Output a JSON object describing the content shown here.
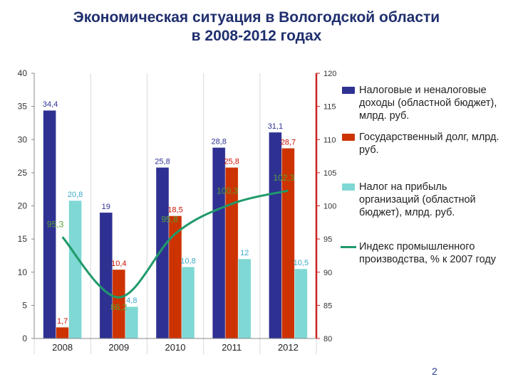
{
  "title": {
    "line1": "Экономическая ситуация в Вологодской области",
    "line2": "в 2008-2012 годах"
  },
  "page_number": "2",
  "chart_data": {
    "type": "bar",
    "categories": [
      "2008",
      "2009",
      "2010",
      "2011",
      "2012"
    ],
    "series": [
      {
        "name": "Налоговые и неналоговые доходы (областной бюджет), млрд. руб.",
        "type": "bar",
        "axis": "left",
        "values": [
          34.4,
          19,
          25.8,
          28.8,
          31.1
        ],
        "labels": [
          "34,4",
          "19",
          "25,8",
          "28,8",
          "31,1"
        ],
        "color": "#2e3192",
        "label_color": "#2e3192"
      },
      {
        "name": "Государственный долг, млрд. руб.",
        "type": "bar",
        "axis": "left",
        "values": [
          1.7,
          10.4,
          18.5,
          25.8,
          28.7
        ],
        "labels": [
          "1,7",
          "10,4",
          "18,5",
          "25,8",
          "28,7"
        ],
        "color": "#cc3300",
        "label_color": "#cc1100"
      },
      {
        "name": "Налог на прибыль организаций (областной бюджет), млрд. руб.",
        "type": "bar",
        "axis": "left",
        "values": [
          20.8,
          4.8,
          10.8,
          12,
          10.5
        ],
        "labels": [
          "20,8",
          "4,8",
          "10,8",
          "12",
          "10,5"
        ],
        "color": "#7fd8d4",
        "label_color": "#3aa8c8"
      },
      {
        "name": "Индекс промышленного производства, % к 2007 году",
        "type": "line",
        "axis": "right",
        "values": [
          95.3,
          86.2,
          95.8,
          100.3,
          102.3
        ],
        "labels": [
          "95,3",
          "86,2",
          "95,8",
          "100,3",
          "102,3"
        ],
        "color": "#1f9a6a",
        "label_color": "#5aa03a"
      }
    ],
    "y_left": {
      "min": 0,
      "max": 40,
      "step": 5,
      "ticks": [
        "0",
        "5",
        "10",
        "15",
        "20",
        "25",
        "30",
        "35",
        "40"
      ]
    },
    "y_right": {
      "min": 80,
      "max": 120,
      "step": 5,
      "ticks": [
        "80",
        "85",
        "90",
        "95",
        "100",
        "105",
        "110",
        "115",
        "120"
      ],
      "axis_color": "#cc2222"
    },
    "grid": true,
    "legend_position": "right"
  }
}
